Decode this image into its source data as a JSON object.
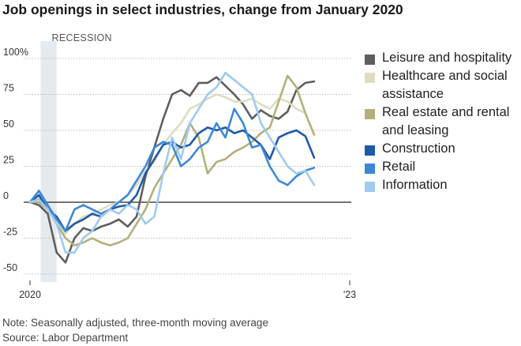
{
  "title": "Job openings in select industries, change from January 2020",
  "note": "Note: Seasonally adjusted, three-month moving average",
  "source": "Source: Labor Department",
  "recession_label": "RECESSION",
  "chart_data": {
    "type": "line",
    "title": "Job openings in select industries, change from January 2020",
    "xlabel": "",
    "ylabel": "",
    "ylim": [
      -50,
      100
    ],
    "xlim": [
      0,
      36
    ],
    "x_unit": "months since January 2020",
    "yticks": [
      {
        "value": 100,
        "label": "100%"
      },
      {
        "value": 75,
        "label": "75"
      },
      {
        "value": 50,
        "label": "50"
      },
      {
        "value": 25,
        "label": "25"
      },
      {
        "value": 0,
        "label": "0"
      },
      {
        "value": -25,
        "label": "-25"
      },
      {
        "value": -50,
        "label": "-50"
      }
    ],
    "xticks": [
      {
        "value": 0,
        "label": "2020"
      },
      {
        "value": 36,
        "label": "'23"
      }
    ],
    "recession": {
      "start": 1.2,
      "end": 3.0
    },
    "grid": true,
    "legend_position": "right",
    "x": [
      0,
      1,
      2,
      3,
      4,
      5,
      6,
      7,
      8,
      9,
      10,
      11,
      12,
      13,
      14,
      15,
      16,
      17,
      18,
      19,
      20,
      21,
      22,
      23,
      24,
      25,
      26,
      27,
      28,
      29,
      30,
      31,
      32,
      33,
      34,
      35,
      36
    ],
    "series": [
      {
        "name": "Leisure and hospitality",
        "color": "#5e5e5e",
        "values": [
          0,
          -2,
          -8,
          -35,
          -42,
          -25,
          -18,
          -20,
          -17,
          -15,
          -12,
          -17,
          -10,
          18,
          38,
          58,
          75,
          78,
          74,
          83,
          83,
          87,
          81,
          75,
          68,
          58,
          64,
          60,
          58,
          63,
          78,
          83,
          84,
          null,
          null,
          null,
          null
        ]
      },
      {
        "name": "Healthcare and social assistance",
        "color": "#e0dcc0",
        "values": [
          0,
          3,
          -5,
          -15,
          -22,
          -15,
          -10,
          -8,
          -5,
          -2,
          0,
          5,
          12,
          22,
          28,
          40,
          48,
          55,
          65,
          68,
          72,
          75,
          73,
          70,
          70,
          72,
          68,
          65,
          72,
          70,
          65,
          62,
          null,
          null,
          null,
          null,
          null
        ]
      },
      {
        "name": "Real estate and rental and leasing",
        "color": "#b5b07a",
        "values": [
          0,
          0,
          -5,
          -15,
          -25,
          -30,
          -28,
          -25,
          -28,
          -30,
          -28,
          -25,
          -15,
          -5,
          10,
          20,
          30,
          40,
          55,
          45,
          20,
          28,
          30,
          35,
          38,
          42,
          48,
          52,
          70,
          88,
          80,
          62,
          47,
          null,
          null,
          null,
          null
        ]
      },
      {
        "name": "Construction",
        "color": "#1f5aa5",
        "values": [
          0,
          5,
          -5,
          -10,
          -20,
          -15,
          -12,
          -8,
          -10,
          -5,
          -3,
          -2,
          5,
          20,
          30,
          40,
          42,
          38,
          40,
          48,
          52,
          50,
          52,
          48,
          50,
          45,
          40,
          30,
          45,
          48,
          50,
          46,
          31,
          null,
          null,
          null,
          null
        ]
      },
      {
        "name": "Retail",
        "color": "#3d88d6",
        "values": [
          0,
          8,
          -2,
          -12,
          -20,
          -5,
          -2,
          -5,
          -8,
          -5,
          0,
          5,
          15,
          25,
          38,
          42,
          40,
          25,
          30,
          38,
          42,
          55,
          45,
          65,
          55,
          38,
          40,
          25,
          15,
          12,
          18,
          22,
          24,
          null,
          null,
          null,
          null
        ]
      },
      {
        "name": "Information",
        "color": "#9fcbef",
        "values": [
          0,
          2,
          -5,
          -15,
          -35,
          -35,
          -25,
          -20,
          -10,
          -5,
          -8,
          -2,
          -5,
          -15,
          -10,
          20,
          45,
          30,
          55,
          65,
          75,
          80,
          90,
          85,
          80,
          75,
          55,
          45,
          35,
          25,
          20,
          22,
          12,
          null,
          null,
          null,
          null
        ]
      }
    ]
  }
}
